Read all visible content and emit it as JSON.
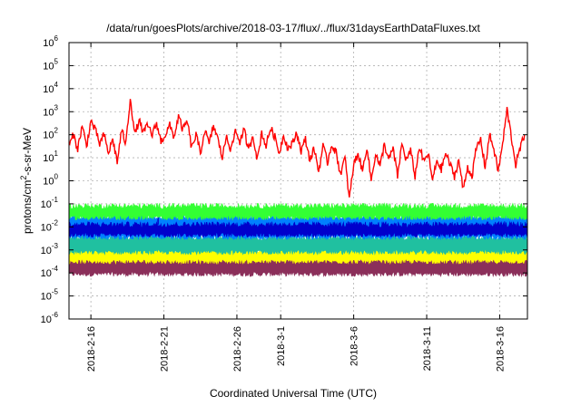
{
  "chart_data": {
    "type": "line",
    "title": "/data/run/goesPlots/archive/2018-03-17/flux/../flux/31daysEarthDataFluxes.txt",
    "xlabel": "Coordinated Universal Time (UTC)",
    "ylabel": "protons/cm2-s-sr-MeV",
    "ylabel_parts": {
      "base": "protons/cm",
      "sup": "2",
      "rest": "-s-sr-MeV"
    },
    "y_scale": "log",
    "ylim_exponents": [
      -6,
      6
    ],
    "y_tick_labels": [
      {
        "base": "10",
        "exp": "-6"
      },
      {
        "base": "10",
        "exp": "-5"
      },
      {
        "base": "10",
        "exp": "-4"
      },
      {
        "base": "10",
        "exp": "-3"
      },
      {
        "base": "10",
        "exp": "-2"
      },
      {
        "base": "10",
        "exp": "-1"
      },
      {
        "base": "10",
        "exp": "0"
      },
      {
        "base": "10",
        "exp": "1"
      },
      {
        "base": "10",
        "exp": "2"
      },
      {
        "base": "10",
        "exp": "3"
      },
      {
        "base": "10",
        "exp": "4"
      },
      {
        "base": "10",
        "exp": "5"
      },
      {
        "base": "10",
        "exp": "6"
      }
    ],
    "xlim_days": [
      -1.5,
      29.9
    ],
    "x_ticks": [
      {
        "label": "2018-2-16",
        "day": 0
      },
      {
        "label": "2018-2-21",
        "day": 5
      },
      {
        "label": "2018-2-26",
        "day": 10
      },
      {
        "label": "2018-3-1",
        "day": 13
      },
      {
        "label": "2018-3-6",
        "day": 18
      },
      {
        "label": "2018-3-11",
        "day": 23
      },
      {
        "label": "2018-3-16",
        "day": 28
      }
    ],
    "grid": true,
    "series": [
      {
        "color": "#8b2f5a",
        "style": "band",
        "low_log": -4.05,
        "high_log": -3.4,
        "spikes": [
          {
            "day": 4.6,
            "log": -3.0
          }
        ]
      },
      {
        "color": "#ffff00",
        "style": "band",
        "low_log": -3.5,
        "high_log": -3.0,
        "spikes": [
          {
            "day": 4.6,
            "log": -2.6
          }
        ]
      },
      {
        "color": "#20c0a0",
        "style": "band",
        "low_log": -3.1,
        "high_log": -2.45,
        "spikes": []
      },
      {
        "color": "#0080ff",
        "style": "band",
        "low_log": -2.45,
        "high_log": -1.55,
        "spikes": []
      },
      {
        "color": "#33ff33",
        "style": "band",
        "low_log": -1.6,
        "high_log": -1.1,
        "spikes": []
      },
      {
        "color": "#0000cc",
        "style": "band",
        "low_log": -2.35,
        "high_log": -1.9,
        "spikes": [
          {
            "day": 4.6,
            "log": -1.6
          }
        ]
      },
      {
        "color": "#ff0000",
        "style": "line",
        "x": [
          -1.5,
          -1.2,
          -0.9,
          -0.6,
          -0.3,
          0,
          0.3,
          0.6,
          0.9,
          1.2,
          1.5,
          1.8,
          2.1,
          2.4,
          2.7,
          3.0,
          3.3,
          3.6,
          3.9,
          4.2,
          4.5,
          4.8,
          5.1,
          5.4,
          5.7,
          6.0,
          6.3,
          6.6,
          6.9,
          7.2,
          7.5,
          7.8,
          8.1,
          8.4,
          8.7,
          9.0,
          9.3,
          9.6,
          9.9,
          10.2,
          10.5,
          10.8,
          11.1,
          11.4,
          11.7,
          12.0,
          12.3,
          12.6,
          12.9,
          13.2,
          13.5,
          13.8,
          14.1,
          14.4,
          14.7,
          15.0,
          15.3,
          15.6,
          15.9,
          16.2,
          16.5,
          16.8,
          17.1,
          17.4,
          17.7,
          18.0,
          18.3,
          18.6,
          18.9,
          19.2,
          19.5,
          19.8,
          20.1,
          20.4,
          20.7,
          21.0,
          21.3,
          21.6,
          21.9,
          22.2,
          22.5,
          22.8,
          23.1,
          23.4,
          23.7,
          24.0,
          24.3,
          24.6,
          24.9,
          25.2,
          25.5,
          25.8,
          26.1,
          26.4,
          26.7,
          27.0,
          27.3,
          27.6,
          27.9,
          28.2,
          28.5,
          28.8,
          29.1,
          29.4,
          29.7
        ],
        "y_log": [
          1.5,
          2.0,
          1.4,
          2.4,
          1.5,
          2.6,
          2.2,
          1.6,
          2.0,
          1.2,
          1.8,
          0.8,
          2.2,
          1.6,
          3.6,
          2.0,
          2.6,
          2.1,
          2.4,
          2.0,
          2.5,
          1.7,
          2.0,
          2.4,
          1.9,
          2.8,
          2.2,
          2.6,
          1.4,
          2.0,
          1.2,
          2.2,
          1.6,
          2.4,
          1.8,
          1.0,
          2.0,
          1.3,
          2.2,
          1.7,
          2.2,
          1.3,
          2.0,
          0.9,
          2.1,
          1.5,
          2.3,
          1.9,
          1.2,
          2.0,
          1.4,
          1.6,
          2.1,
          1.3,
          1.8,
          0.9,
          1.4,
          0.4,
          1.5,
          0.8,
          1.6,
          1.2,
          0.3,
          1.0,
          -0.8,
          0.7,
          1.2,
          0.4,
          1.5,
          0.0,
          1.2,
          0.6,
          1.6,
          0.9,
          1.4,
          0.2,
          1.6,
          0.9,
          1.3,
          0.2,
          1.5,
          0.8,
          1.2,
          0.0,
          0.9,
          0.5,
          1.2,
          0.7,
          0.2,
          0.9,
          -0.4,
          0.6,
          0.2,
          1.4,
          1.8,
          0.6,
          2.0,
          1.4,
          0.4,
          1.6,
          3.1,
          1.9,
          0.7,
          1.4,
          2.0
        ]
      }
    ]
  }
}
